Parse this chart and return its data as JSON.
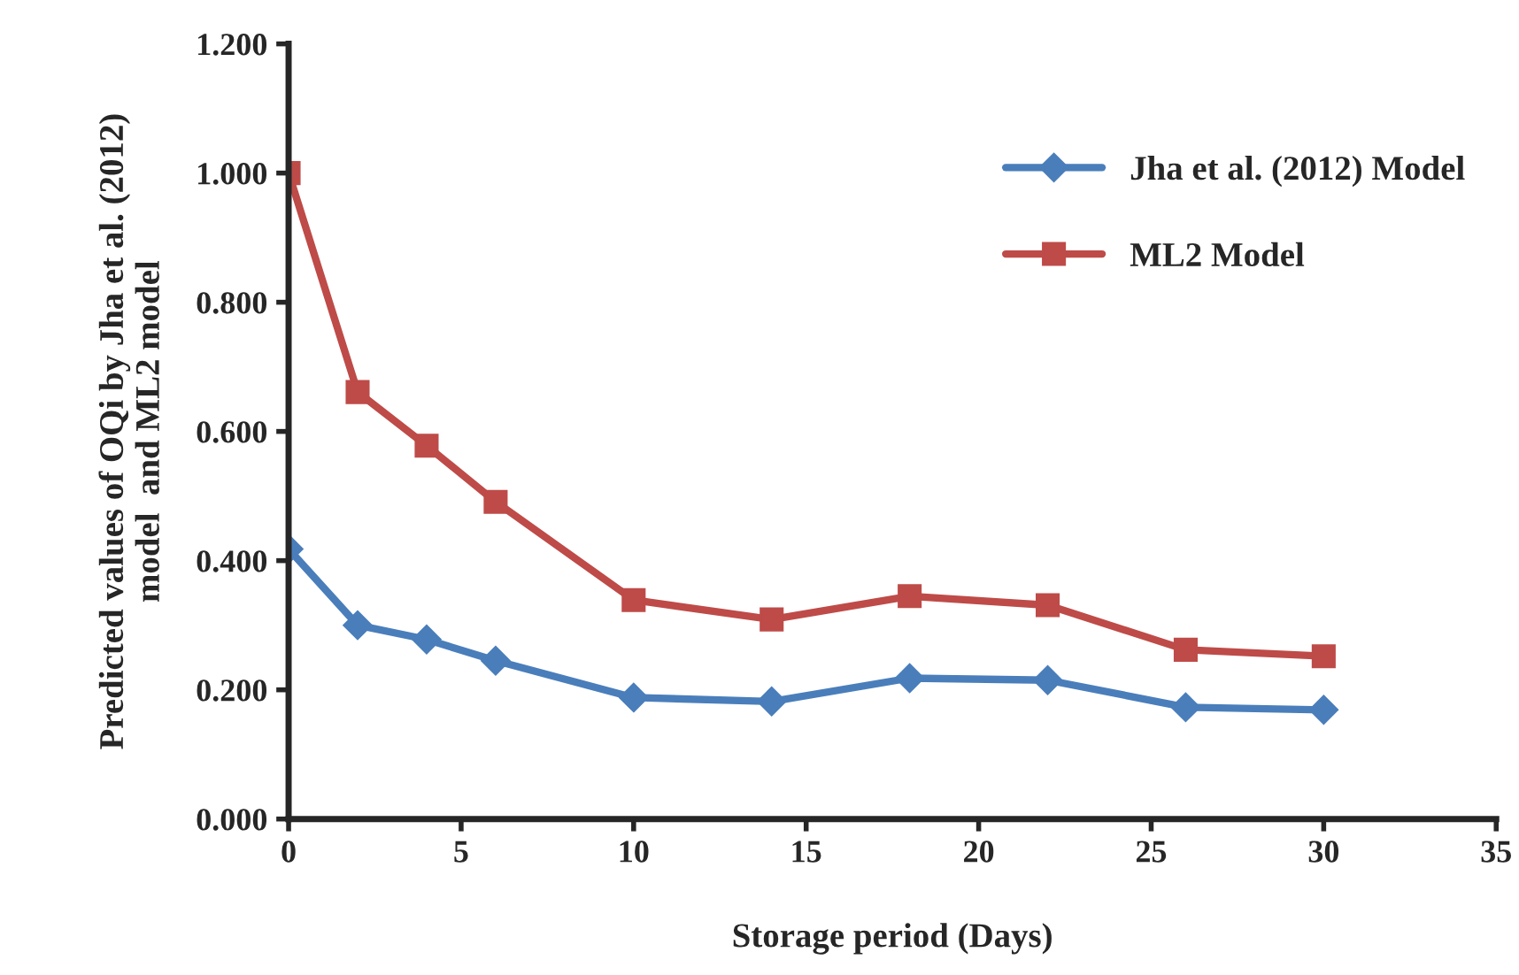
{
  "chart_data": {
    "type": "line",
    "xlabel": "Storage period (Days)",
    "ylabel": "Predicted values of OQi by Jha et al. (2012)\nmodel  and ML2 model",
    "x": [
      0,
      2,
      4,
      6,
      10,
      14,
      18,
      22,
      26,
      30
    ],
    "series": [
      {
        "name": "Jha et al. (2012) Model",
        "color": "#4a7ebb",
        "marker": "diamond",
        "values": [
          0.418,
          0.3,
          0.278,
          0.245,
          0.188,
          0.182,
          0.218,
          0.215,
          0.173,
          0.169
        ]
      },
      {
        "name": "ML2 Model",
        "color": "#be4b48",
        "marker": "square",
        "values": [
          1.0,
          0.661,
          0.578,
          0.491,
          0.339,
          0.309,
          0.345,
          0.331,
          0.262,
          0.252
        ]
      }
    ],
    "xlim": [
      0,
      35
    ],
    "xticks": [
      0,
      5,
      10,
      15,
      20,
      25,
      30,
      35
    ],
    "ylim": [
      0,
      1.2
    ],
    "yticks": [
      {
        "value": 0,
        "label": "0.000"
      },
      {
        "value": 0.2,
        "label": "0.200"
      },
      {
        "value": 0.4,
        "label": "0.400"
      },
      {
        "value": 0.6,
        "label": "0.600"
      },
      {
        "value": 0.8,
        "label": "0.800"
      },
      {
        "value": 1.0,
        "label": "1.000"
      },
      {
        "value": 1.2,
        "label": "1.200"
      }
    ],
    "grid": false,
    "legend": "right",
    "line_style": "solid"
  }
}
